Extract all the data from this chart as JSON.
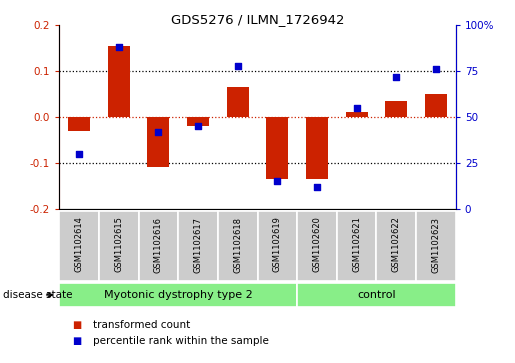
{
  "title": "GDS5276 / ILMN_1726942",
  "samples": [
    "GSM1102614",
    "GSM1102615",
    "GSM1102616",
    "GSM1102617",
    "GSM1102618",
    "GSM1102619",
    "GSM1102620",
    "GSM1102621",
    "GSM1102622",
    "GSM1102623"
  ],
  "transformed_count": [
    -0.03,
    0.155,
    -0.11,
    -0.02,
    0.065,
    -0.135,
    -0.135,
    0.01,
    0.035,
    0.05
  ],
  "percentile_rank": [
    30,
    88,
    42,
    45,
    78,
    15,
    12,
    55,
    72,
    76
  ],
  "disease_groups": [
    {
      "label": "Myotonic dystrophy type 2",
      "start": 0,
      "end": 6
    },
    {
      "label": "control",
      "start": 6,
      "end": 10
    }
  ],
  "ylim_left": [
    -0.2,
    0.2
  ],
  "ylim_right": [
    0,
    100
  ],
  "yticks_left": [
    -0.2,
    -0.1,
    0.0,
    0.1,
    0.2
  ],
  "yticks_right": [
    0,
    25,
    50,
    75,
    100
  ],
  "yticklabels_right": [
    "0",
    "25",
    "50",
    "75",
    "100%"
  ],
  "grid_lines": [
    0.1,
    -0.1
  ],
  "bar_color": "#cc2200",
  "scatter_color": "#0000cc",
  "bg_color_disease": "#88ee88",
  "bg_color_labels": "#cccccc",
  "legend_bar_label": "transformed count",
  "legend_scatter_label": "percentile rank within the sample",
  "disease_state_label": "disease state",
  "zero_line_color": "#cc2200",
  "dotted_line_color": "#000000",
  "fig_width": 5.15,
  "fig_height": 3.63,
  "dpi": 100
}
